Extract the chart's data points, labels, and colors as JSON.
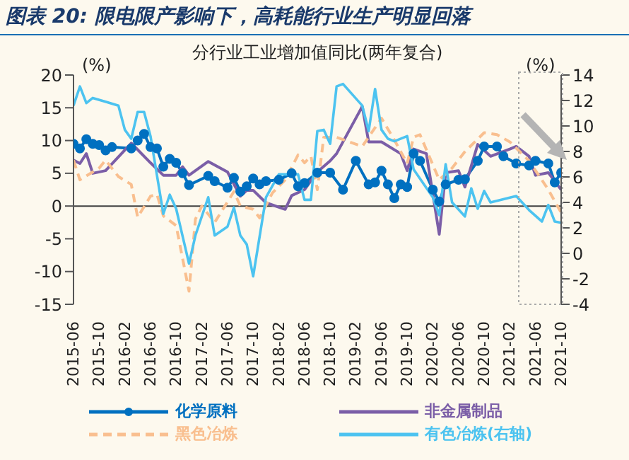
{
  "chart_data": {
    "type": "line",
    "title": "图表 20: 限电限产影响下，高耗能行业生产明显回落",
    "subtitle": "分行业工业增加值同比(两年复合)",
    "ylabel": "(%)",
    "y2label": "(%)",
    "xlim": [
      "2015-06",
      "2021-10"
    ],
    "xticks": [
      "2015-06",
      "2015-10",
      "2016-02",
      "2016-06",
      "2016-10",
      "2017-02",
      "2017-06",
      "2017-10",
      "2018-02",
      "2018-06",
      "2018-10",
      "2019-02",
      "2019-06",
      "2019-10",
      "2020-02",
      "2020-06",
      "2020-10",
      "2021-02",
      "2021-06",
      "2021-10"
    ],
    "ylim": [
      -15,
      20
    ],
    "yticks": [
      -15,
      -10,
      -5,
      0,
      5,
      10,
      15,
      20
    ],
    "y2lim": [
      -4,
      14
    ],
    "y2ticks": [
      -4,
      -2,
      0,
      2,
      4,
      6,
      8,
      10,
      12,
      14
    ],
    "grid": false,
    "legend": "bottom",
    "ref_lines": [
      {
        "axis": "y",
        "value": 0,
        "color": "#404040"
      }
    ],
    "series": [
      {
        "name": "化学原料",
        "color": "#0070c0",
        "marker": "circle",
        "x": [
          "2015-06",
          "2015-07",
          "2015-08",
          "2015-09",
          "2015-10",
          "2015-11",
          "2015-12",
          "2016-03",
          "2016-04",
          "2016-05",
          "2016-06",
          "2016-07",
          "2016-08",
          "2016-09",
          "2016-10",
          "2016-11",
          "2016-12",
          "2017-03",
          "2017-04",
          "2017-06",
          "2017-07",
          "2017-08",
          "2017-09",
          "2017-10",
          "2017-11",
          "2017-12",
          "2018-02",
          "2018-04",
          "2018-05",
          "2018-06",
          "2018-08",
          "2018-10",
          "2018-12",
          "2019-02",
          "2019-04",
          "2019-05",
          "2019-06",
          "2019-07",
          "2019-08",
          "2019-09",
          "2019-10",
          "2019-11",
          "2019-12",
          "2020-02",
          "2020-03",
          "2020-04",
          "2020-06",
          "2020-07",
          "2020-09",
          "2020-10",
          "2020-12",
          "2021-01",
          "2021-03",
          "2021-05",
          "2021-06",
          "2021-08",
          "2021-09",
          "2021-10"
        ],
        "values": [
          9.5,
          8.8,
          10.2,
          9.5,
          9.3,
          8.5,
          9.0,
          8.8,
          10,
          11,
          9,
          8.8,
          6,
          7.2,
          6.6,
          5,
          3.2,
          4.6,
          3.8,
          2.8,
          4.3,
          2.2,
          3,
          4.2,
          3.3,
          3.8,
          4,
          5.0,
          3.0,
          3.5,
          5.1,
          5.1,
          2.5,
          6.9,
          3.3,
          3.6,
          5.4,
          3.3,
          1.2,
          3.3,
          2.9,
          8,
          6.9,
          2.5,
          0.7,
          3.3,
          4,
          4.1,
          6.9,
          9.1,
          9.1,
          7.6,
          6.5,
          6.2,
          6.9,
          6.5,
          3.6,
          5.1
        ]
      },
      {
        "name": "非金属制品",
        "color": "#7b5ea7",
        "x": [
          "2015-06",
          "2015-07",
          "2015-08",
          "2015-09",
          "2015-11",
          "2016-03",
          "2016-06",
          "2016-08",
          "2016-10",
          "2016-11",
          "2016-12",
          "2017-03",
          "2017-06",
          "2017-08",
          "2017-09",
          "2017-10",
          "2017-12",
          "2018-03",
          "2018-04",
          "2018-06",
          "2018-08",
          "2018-10",
          "2018-11",
          "2019-03",
          "2019-04",
          "2019-06",
          "2019-09",
          "2019-10",
          "2019-11",
          "2020-01",
          "2020-03",
          "2020-04",
          "2020-06",
          "2020-07",
          "2020-09",
          "2020-11",
          "2021-02",
          "2021-03",
          "2021-05",
          "2021-06",
          "2021-08",
          "2021-10"
        ],
        "values": [
          7,
          6.5,
          8,
          5,
          5.4,
          9.6,
          6.6,
          4.7,
          4.7,
          6,
          4.7,
          6.8,
          5.2,
          1.5,
          2.4,
          2.4,
          0.5,
          -0.5,
          1.6,
          2.5,
          5.2,
          6.9,
          8,
          15.2,
          9.8,
          9.8,
          8,
          5.4,
          8.7,
          8,
          -4.3,
          5.1,
          5.4,
          2.9,
          9.4,
          7.6,
          8.7,
          9.1,
          7.6,
          4.7,
          5.1,
          2.5
        ]
      },
      {
        "name": "黑色冶炼",
        "color": "#f9bf8f",
        "line_style": "dashed",
        "x": [
          "2015-06",
          "2015-07",
          "2015-10",
          "2015-11",
          "2016-01",
          "2016-03",
          "2016-04",
          "2016-06",
          "2016-07",
          "2016-08",
          "2016-10",
          "2016-12",
          "2017-01",
          "2017-02",
          "2017-04",
          "2017-07",
          "2017-08",
          "2017-10",
          "2017-11",
          "2018-01",
          "2018-03",
          "2018-05",
          "2018-06",
          "2018-07",
          "2018-08",
          "2018-09",
          "2018-11",
          "2019-03",
          "2019-06",
          "2019-08",
          "2019-10",
          "2019-11",
          "2019-12",
          "2020-03",
          "2020-05",
          "2020-07",
          "2020-10",
          "2020-12",
          "2021-02",
          "2021-05",
          "2021-08",
          "2021-10"
        ],
        "values": [
          7,
          4,
          5.8,
          7,
          4.5,
          3.3,
          -1.7,
          1.5,
          1.8,
          -1.5,
          -3,
          -13,
          -2,
          0,
          -2.5,
          2.2,
          0,
          -0.5,
          -1.8,
          2,
          4,
          7.8,
          6.6,
          7.6,
          2.5,
          10.5,
          10.5,
          9.1,
          13.4,
          10.1,
          6.5,
          10.5,
          10.9,
          4,
          5.8,
          8.3,
          11.2,
          10.9,
          9.8,
          6.9,
          2.5,
          -1
        ]
      },
      {
        "name": "有色冶炼(右轴)",
        "color": "#4cc3f0",
        "axis": "y2",
        "x": [
          "2015-06",
          "2015-07",
          "2015-08",
          "2015-09",
          "2015-11",
          "2016-01",
          "2016-02",
          "2016-03",
          "2016-04",
          "2016-05",
          "2016-06",
          "2016-08",
          "2016-09",
          "2016-10",
          "2016-12",
          "2017-01",
          "2017-03",
          "2017-04",
          "2017-06",
          "2017-07",
          "2017-08",
          "2017-09",
          "2017-10",
          "2017-12",
          "2018-02",
          "2018-05",
          "2018-06",
          "2018-07",
          "2018-08",
          "2018-09",
          "2018-10",
          "2018-11",
          "2018-12",
          "2019-03",
          "2019-04",
          "2019-05",
          "2019-06",
          "2019-07",
          "2019-08",
          "2019-10",
          "2019-11",
          "2020-02",
          "2020-03",
          "2020-04",
          "2020-05",
          "2020-07",
          "2020-08",
          "2020-09",
          "2020-10",
          "2020-11",
          "2021-03",
          "2021-05",
          "2021-07",
          "2021-08",
          "2021-09",
          "2021-10"
        ],
        "values": [
          11.6,
          13.1,
          11.8,
          12.2,
          11.9,
          11.6,
          9.7,
          9.0,
          11.1,
          11.1,
          9.2,
          3.1,
          4.6,
          3.5,
          -0.8,
          1.4,
          4.4,
          1.4,
          2.1,
          3.6,
          1.4,
          0.7,
          -1.8,
          4.4,
          6.2,
          6.2,
          4.2,
          4.2,
          9.6,
          9.7,
          8.6,
          13.1,
          13.3,
          11.6,
          9.6,
          12.9,
          9.7,
          9,
          8.8,
          9.2,
          6.6,
          4.4,
          3,
          7,
          4,
          2.9,
          5.1,
          3.5,
          4.9,
          4,
          4.5,
          3.4,
          2.5,
          3.8,
          2.5,
          2.4
        ]
      }
    ]
  }
}
